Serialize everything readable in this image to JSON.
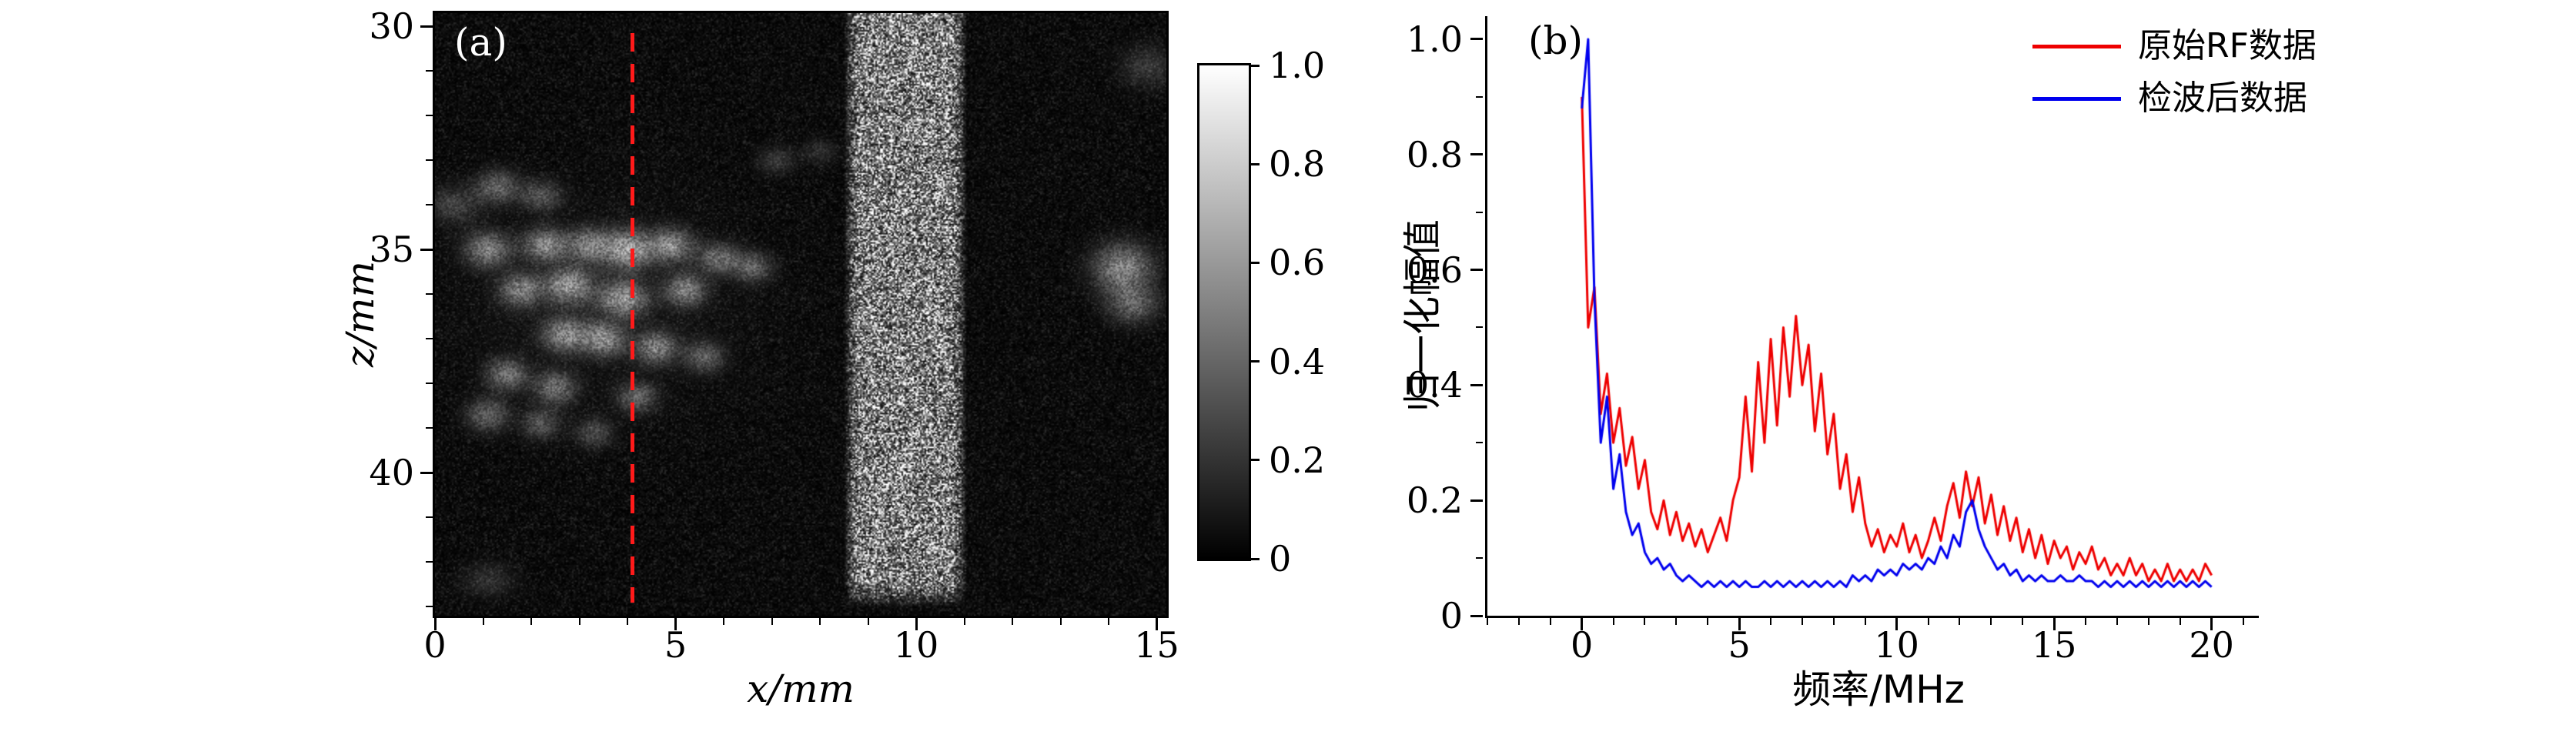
{
  "figure": {
    "background": "#ffffff",
    "panel_count": 2
  },
  "chart_data": [
    {
      "id": "panel-a",
      "type": "heatmap",
      "panel_label": "(a)",
      "xlabel": "x/mm",
      "ylabel": "z/mm",
      "colormap": "gray",
      "xlim": [
        0,
        15.2
      ],
      "z_top": 29.7,
      "z_bottom": 43.2,
      "x_ticks": [
        0,
        5,
        10,
        15
      ],
      "x_tick_labels": [
        "0",
        "5",
        "10",
        "15"
      ],
      "z_ticks": [
        30,
        35,
        40
      ],
      "z_tick_labels": [
        "30",
        "35",
        "40"
      ],
      "x_minor_step": 1,
      "z_minor_step": 1,
      "background_level": 0.032,
      "noise_seed": 77,
      "band": {
        "x_from": 8.66,
        "x_to": 10.9,
        "z_to": 42.7,
        "intensity": 0.5
      },
      "overlay_line": {
        "x_mm": 4.1,
        "z_from": 30.15,
        "z_to": 42.9,
        "color": "#ff1a1a",
        "style": "dashed"
      },
      "colorbar": {
        "vmin": 0,
        "vmax": 1,
        "tick_labels": [
          "1.0",
          "0.8",
          "0.6",
          "0.4",
          "0.2",
          "0"
        ]
      },
      "blobs": [
        [
          1.3,
          33.6,
          0.3,
          0.25,
          0.3
        ],
        [
          2.2,
          33.8,
          0.28,
          0.22,
          0.25
        ],
        [
          0.4,
          34.0,
          0.35,
          0.28,
          0.18
        ],
        [
          1.1,
          35.0,
          0.32,
          0.26,
          0.4
        ],
        [
          2.3,
          34.9,
          0.3,
          0.24,
          0.45
        ],
        [
          3.2,
          34.9,
          0.3,
          0.25,
          0.4
        ],
        [
          4.0,
          35.0,
          0.34,
          0.28,
          0.55
        ],
        [
          4.9,
          34.9,
          0.3,
          0.24,
          0.45
        ],
        [
          5.9,
          35.2,
          0.28,
          0.22,
          0.35
        ],
        [
          6.6,
          35.4,
          0.26,
          0.22,
          0.3
        ],
        [
          1.8,
          35.9,
          0.3,
          0.25,
          0.4
        ],
        [
          2.8,
          35.8,
          0.32,
          0.26,
          0.5
        ],
        [
          3.9,
          36.1,
          0.32,
          0.26,
          0.5
        ],
        [
          5.2,
          35.9,
          0.28,
          0.24,
          0.4
        ],
        [
          2.7,
          36.9,
          0.3,
          0.25,
          0.45
        ],
        [
          3.5,
          37.0,
          0.3,
          0.25,
          0.45
        ],
        [
          4.6,
          37.2,
          0.28,
          0.24,
          0.4
        ],
        [
          5.6,
          37.4,
          0.26,
          0.22,
          0.3
        ],
        [
          1.5,
          37.8,
          0.28,
          0.24,
          0.35
        ],
        [
          2.5,
          38.1,
          0.28,
          0.24,
          0.35
        ],
        [
          4.2,
          38.3,
          0.26,
          0.22,
          0.3
        ],
        [
          1.1,
          38.7,
          0.28,
          0.24,
          0.3
        ],
        [
          2.2,
          38.9,
          0.26,
          0.22,
          0.25
        ],
        [
          3.3,
          39.1,
          0.26,
          0.22,
          0.2
        ],
        [
          7.1,
          33.0,
          0.25,
          0.2,
          0.15
        ],
        [
          8.0,
          32.8,
          0.22,
          0.18,
          0.12
        ],
        [
          14.3,
          35.4,
          0.4,
          0.35,
          0.45
        ],
        [
          14.5,
          36.2,
          0.35,
          0.3,
          0.3
        ],
        [
          14.8,
          30.9,
          0.35,
          0.3,
          0.15
        ],
        [
          1.1,
          42.4,
          0.35,
          0.25,
          0.12
        ],
        [
          3.5,
          36.2,
          1.8,
          1.5,
          0.04
        ]
      ]
    },
    {
      "id": "panel-b",
      "type": "line",
      "panel_label": "(b)",
      "xlabel": "频率/MHz",
      "ylabel": "归一化幅值",
      "xlim": [
        -3,
        21.5
      ],
      "ylim": [
        0,
        1.04
      ],
      "x_ticks": [
        0,
        5,
        10,
        15,
        20
      ],
      "x_tick_labels": [
        "0",
        "5",
        "10",
        "15",
        "20"
      ],
      "y_ticks": [
        0,
        0.2,
        0.4,
        0.6,
        0.8,
        1.0
      ],
      "y_tick_labels": [
        "0",
        "0.2",
        "0.4",
        "0.6",
        "0.8",
        "1.0"
      ],
      "x_minor_step": 1,
      "y_minor_step": 0.1,
      "x_start": 0,
      "x_step": 0.2,
      "legend_position": "upper right",
      "series": [
        {
          "name": "原始RF数据",
          "color": "#ee0000",
          "values": [
            0.9,
            0.5,
            0.57,
            0.35,
            0.42,
            0.3,
            0.36,
            0.26,
            0.31,
            0.22,
            0.27,
            0.18,
            0.15,
            0.2,
            0.14,
            0.18,
            0.13,
            0.16,
            0.12,
            0.15,
            0.11,
            0.14,
            0.17,
            0.13,
            0.2,
            0.24,
            0.38,
            0.25,
            0.44,
            0.3,
            0.48,
            0.33,
            0.5,
            0.38,
            0.52,
            0.4,
            0.47,
            0.32,
            0.42,
            0.28,
            0.35,
            0.22,
            0.28,
            0.18,
            0.24,
            0.16,
            0.12,
            0.15,
            0.11,
            0.14,
            0.12,
            0.16,
            0.11,
            0.14,
            0.1,
            0.13,
            0.17,
            0.13,
            0.19,
            0.23,
            0.17,
            0.25,
            0.19,
            0.24,
            0.16,
            0.21,
            0.14,
            0.19,
            0.13,
            0.17,
            0.11,
            0.15,
            0.1,
            0.14,
            0.09,
            0.13,
            0.1,
            0.12,
            0.08,
            0.11,
            0.09,
            0.12,
            0.08,
            0.1,
            0.07,
            0.09,
            0.07,
            0.1,
            0.07,
            0.09,
            0.06,
            0.08,
            0.06,
            0.09,
            0.06,
            0.08,
            0.06,
            0.08,
            0.06,
            0.09,
            0.07
          ]
        },
        {
          "name": "检波后数据",
          "color": "#0000ee",
          "values": [
            0.88,
            1.0,
            0.55,
            0.3,
            0.38,
            0.22,
            0.28,
            0.18,
            0.14,
            0.16,
            0.11,
            0.09,
            0.1,
            0.08,
            0.09,
            0.07,
            0.06,
            0.07,
            0.06,
            0.05,
            0.06,
            0.05,
            0.06,
            0.05,
            0.06,
            0.05,
            0.06,
            0.05,
            0.05,
            0.06,
            0.05,
            0.06,
            0.05,
            0.06,
            0.05,
            0.06,
            0.05,
            0.06,
            0.05,
            0.06,
            0.05,
            0.06,
            0.05,
            0.07,
            0.06,
            0.07,
            0.06,
            0.08,
            0.07,
            0.08,
            0.07,
            0.09,
            0.08,
            0.09,
            0.08,
            0.1,
            0.09,
            0.12,
            0.1,
            0.14,
            0.12,
            0.18,
            0.2,
            0.15,
            0.12,
            0.1,
            0.08,
            0.09,
            0.07,
            0.08,
            0.06,
            0.07,
            0.06,
            0.07,
            0.06,
            0.06,
            0.07,
            0.06,
            0.06,
            0.07,
            0.06,
            0.06,
            0.05,
            0.06,
            0.05,
            0.06,
            0.05,
            0.06,
            0.05,
            0.06,
            0.05,
            0.06,
            0.05,
            0.06,
            0.05,
            0.06,
            0.05,
            0.06,
            0.05,
            0.06,
            0.05
          ]
        }
      ]
    }
  ]
}
